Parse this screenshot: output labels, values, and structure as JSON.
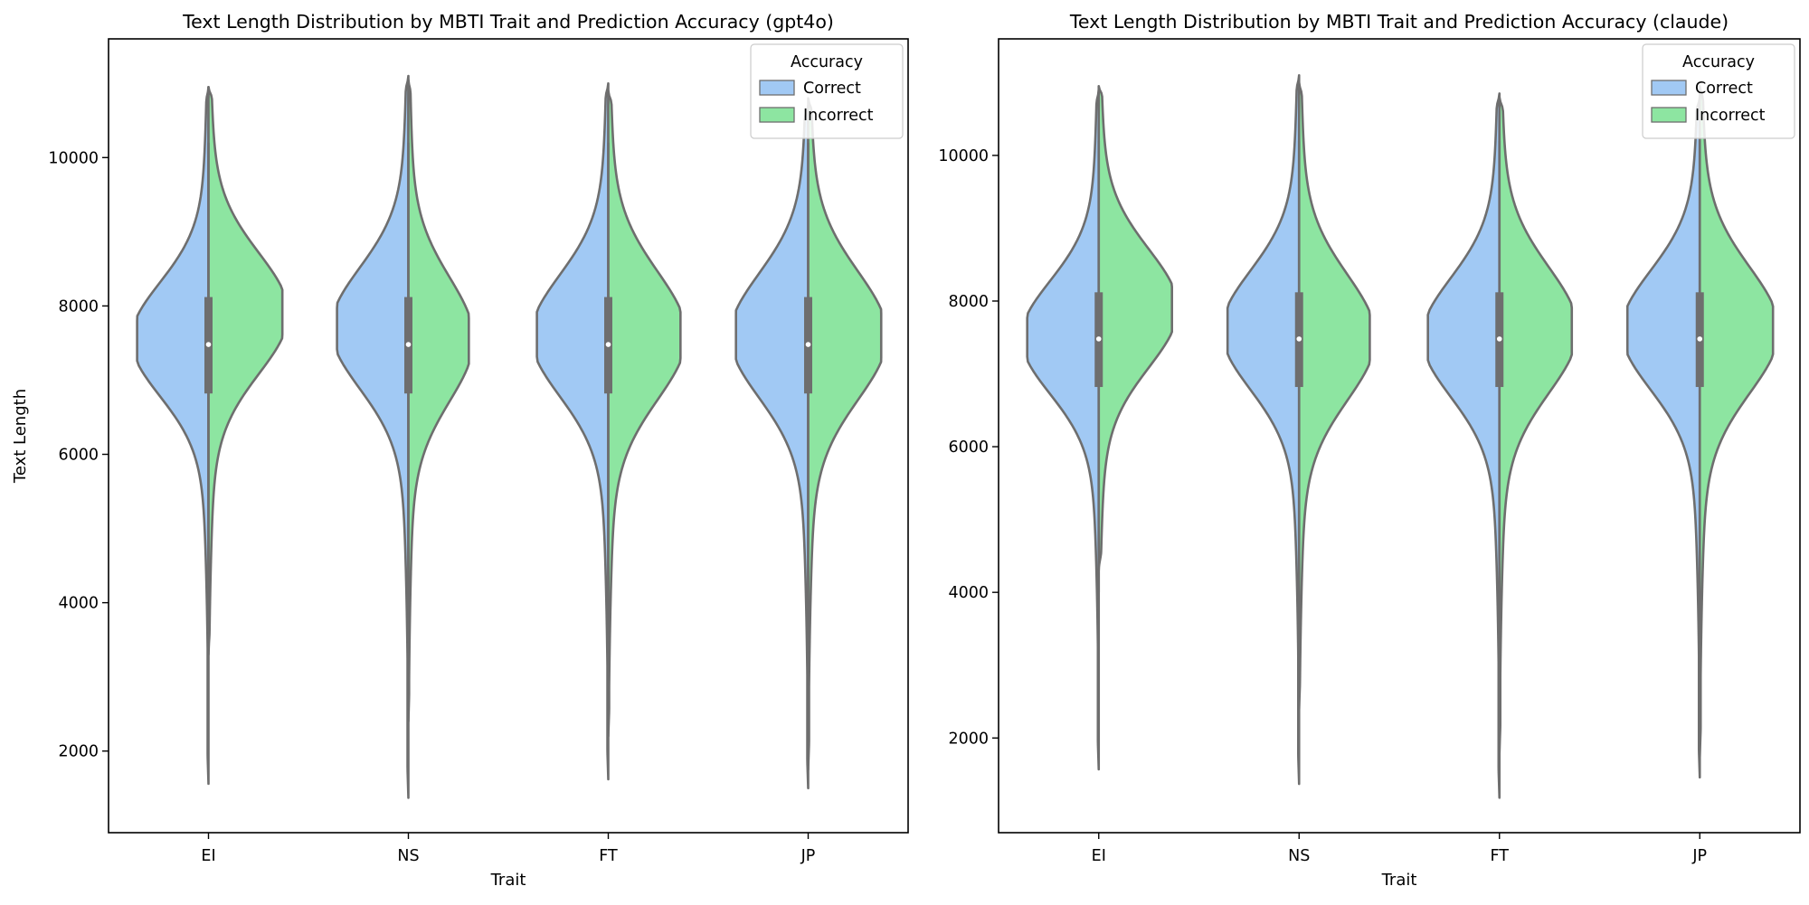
{
  "chart_data": [
    {
      "type": "violin",
      "title": "Text Length Distribution by MBTI Trait and Prediction Accuracy (gpt4o)",
      "xlabel": "Trait",
      "ylabel": "Text Length",
      "categories": [
        "EI",
        "NS",
        "FT",
        "JP"
      ],
      "yticks": [
        2000,
        4000,
        6000,
        8000,
        10000
      ],
      "ylim": [
        900,
        11600
      ],
      "legend": {
        "title": "Accuracy",
        "entries": [
          "Correct",
          "Incorrect"
        ],
        "position": "upper-right"
      },
      "series": [
        {
          "name": "Correct",
          "color": "#a1c9f4",
          "side": "left"
        },
        {
          "name": "Incorrect",
          "color": "#8de5a1",
          "side": "right"
        }
      ],
      "box": {
        "q1": 6820,
        "median": 7480,
        "q3": 8120,
        "whisker_low": 3900,
        "whisker_high": 10200
      },
      "violins": [
        {
          "category": "EI",
          "correct": {
            "min": 1560,
            "max": 10950,
            "peak": 7550,
            "width": 0.85,
            "spread": 750
          },
          "incorrect": {
            "min": 3300,
            "max": 10950,
            "peak": 7900,
            "width": 0.88,
            "spread": 800
          }
        },
        {
          "category": "NS",
          "correct": {
            "min": 1370,
            "max": 11100,
            "peak": 7700,
            "width": 0.85,
            "spread": 800
          },
          "incorrect": {
            "min": 2400,
            "max": 11050,
            "peak": 7550,
            "width": 0.72,
            "spread": 820
          }
        },
        {
          "category": "FT",
          "correct": {
            "min": 1620,
            "max": 11000,
            "peak": 7600,
            "width": 0.85,
            "spread": 800
          },
          "incorrect": {
            "min": 2200,
            "max": 10900,
            "peak": 7600,
            "width": 0.86,
            "spread": 850
          }
        },
        {
          "category": "JP",
          "correct": {
            "min": 1500,
            "max": 10700,
            "peak": 7600,
            "width": 0.86,
            "spread": 820
          },
          "incorrect": {
            "min": 1750,
            "max": 10800,
            "peak": 7600,
            "width": 0.87,
            "spread": 850
          }
        }
      ]
    },
    {
      "type": "violin",
      "title": "Text Length Distribution by MBTI Trait and Prediction Accuracy (claude)",
      "xlabel": "Trait",
      "ylabel": "",
      "categories": [
        "EI",
        "NS",
        "FT",
        "JP"
      ],
      "yticks": [
        2000,
        4000,
        6000,
        8000,
        10000
      ],
      "ylim": [
        700,
        11600
      ],
      "legend": {
        "title": "Accuracy",
        "entries": [
          "Correct",
          "Incorrect"
        ],
        "position": "upper-right"
      },
      "series": [
        {
          "name": "Correct",
          "color": "#a1c9f4",
          "side": "left"
        },
        {
          "name": "Incorrect",
          "color": "#8de5a1",
          "side": "right"
        }
      ],
      "box": {
        "q1": 6820,
        "median": 7480,
        "q3": 8120,
        "whisker_low": 4000,
        "whisker_high": 10200
      },
      "violins": [
        {
          "category": "EI",
          "correct": {
            "min": 1570,
            "max": 10900,
            "peak": 7500,
            "width": 0.85,
            "spread": 760
          },
          "incorrect": {
            "min": 4300,
            "max": 10950,
            "peak": 7900,
            "width": 0.87,
            "spread": 800
          }
        },
        {
          "category": "NS",
          "correct": {
            "min": 1370,
            "max": 11100,
            "peak": 7600,
            "width": 0.85,
            "spread": 800
          },
          "incorrect": {
            "min": 2400,
            "max": 11000,
            "peak": 7500,
            "width": 0.84,
            "spread": 850
          }
        },
        {
          "category": "FT",
          "correct": {
            "min": 1180,
            "max": 10850,
            "peak": 7500,
            "width": 0.85,
            "spread": 800
          },
          "incorrect": {
            "min": 1800,
            "max": 10800,
            "peak": 7600,
            "width": 0.86,
            "spread": 850
          }
        },
        {
          "category": "JP",
          "correct": {
            "min": 1460,
            "max": 10800,
            "peak": 7600,
            "width": 0.86,
            "spread": 800
          },
          "incorrect": {
            "min": 1750,
            "max": 10950,
            "peak": 7600,
            "width": 0.87,
            "spread": 850
          }
        }
      ]
    }
  ]
}
